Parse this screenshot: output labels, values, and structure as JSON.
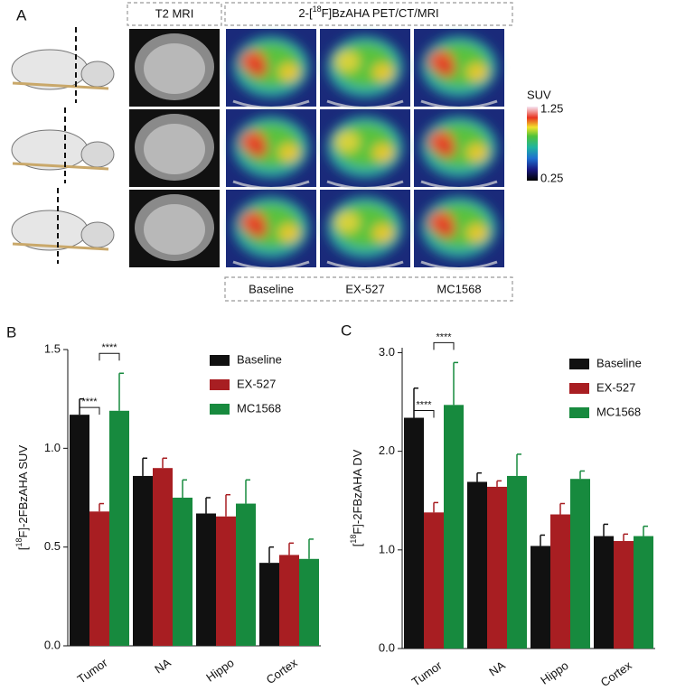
{
  "panel_a": {
    "label": "A",
    "header_mri": "T2 MRI",
    "header_pet": [
      "2-[",
      "18",
      "F]BzAHA PET/CT/MRI"
    ],
    "colorbar": {
      "label": "SUV",
      "max": 1.25,
      "min": 0.25
    },
    "conditions": [
      {
        "name": "Baseline",
        "color": "#111111"
      },
      {
        "name": "EX-527",
        "color": "#c0282d"
      },
      {
        "name": "MC1568",
        "color": "#2a9a3c"
      }
    ]
  },
  "chart_data": [
    {
      "type": "bar",
      "panel_label": "B",
      "y_label": [
        "[",
        "18",
        "F]-2FBzAHA SUV"
      ],
      "categories": [
        "Tumor",
        "NA",
        "Hippo",
        "Cortex"
      ],
      "series": [
        {
          "name": "Baseline",
          "color": "#111111",
          "values": [
            1.17,
            0.86,
            0.67,
            0.42
          ],
          "errors": [
            0.08,
            0.09,
            0.08,
            0.08
          ]
        },
        {
          "name": "EX-527",
          "color": "#a81e22",
          "values": [
            0.68,
            0.9,
            0.655,
            0.46
          ],
          "errors": [
            0.04,
            0.05,
            0.11,
            0.06
          ]
        },
        {
          "name": "MC1568",
          "color": "#178a3e",
          "values": [
            1.19,
            0.75,
            0.72,
            0.44
          ],
          "errors": [
            0.19,
            0.09,
            0.12,
            0.1
          ]
        }
      ],
      "annotations": [
        "****",
        "****"
      ],
      "ylim": [
        0,
        1.5
      ],
      "yticks": [
        {
          "value": 0,
          "label": "0.0"
        },
        0.5,
        {
          "value": 1,
          "label": "1.0"
        },
        1.5
      ]
    },
    {
      "type": "bar",
      "panel_label": "C",
      "y_label": [
        "[",
        "18",
        "F]-2FBzAHA DV"
      ],
      "categories": [
        "Tumor",
        "NA",
        "Hippo",
        "Cortex"
      ],
      "series": [
        {
          "name": "Baseline",
          "color": "#111111",
          "values": [
            2.34,
            1.69,
            1.04,
            1.14
          ],
          "errors": [
            0.3,
            0.09,
            0.11,
            0.12
          ]
        },
        {
          "name": "EX-527",
          "color": "#a81e22",
          "values": [
            1.38,
            1.64,
            1.36,
            1.09
          ],
          "errors": [
            0.1,
            0.06,
            0.11,
            0.07
          ]
        },
        {
          "name": "MC1568",
          "color": "#178a3e",
          "values": [
            2.47,
            1.75,
            1.72,
            1.14
          ],
          "errors": [
            0.43,
            0.22,
            0.08,
            0.1
          ]
        }
      ],
      "annotations": [
        "****",
        "****"
      ],
      "ylim": [
        0,
        3.05
      ],
      "yticks": [
        {
          "value": 0,
          "label": "0.0"
        },
        {
          "value": 1,
          "label": "1.0"
        },
        {
          "value": 2,
          "label": "2.0"
        },
        {
          "value": 3,
          "label": "3.0"
        }
      ]
    }
  ]
}
